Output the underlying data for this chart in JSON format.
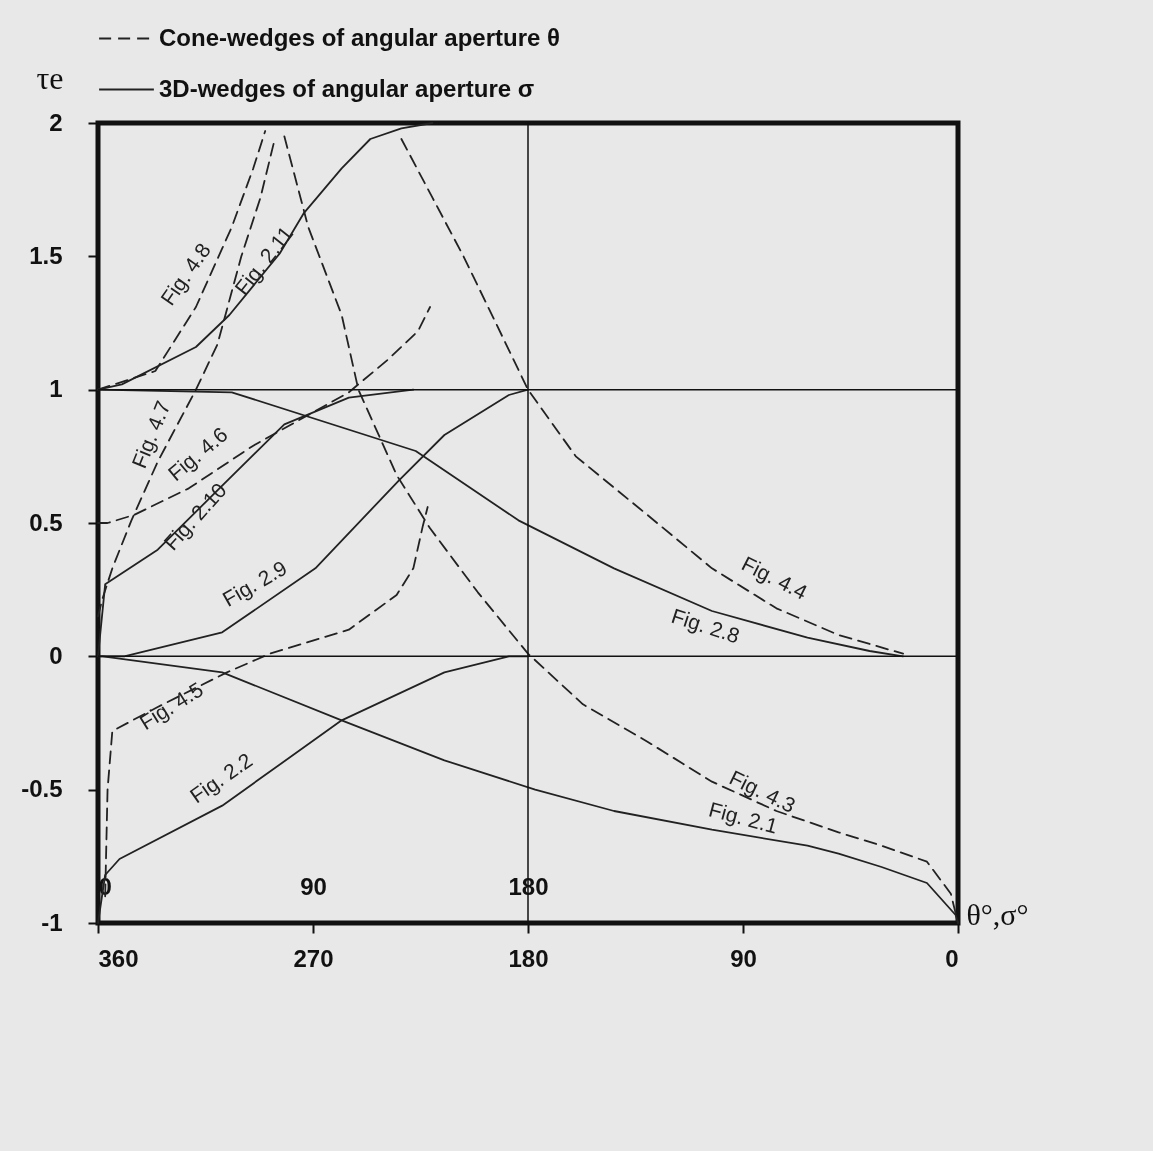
{
  "chart_data": {
    "type": "line",
    "xlabel": "θ°,σ°",
    "ylabel": "τe",
    "xlim": [
      360,
      0
    ],
    "xticks": [
      360,
      270,
      180,
      90,
      0
    ],
    "x2lim": [
      0,
      360
    ],
    "x2ticks": [
      0,
      90,
      180
    ],
    "ylim": [
      -1,
      2
    ],
    "yticks": [
      -1,
      -0.5,
      0,
      0.5,
      1,
      1.5,
      2
    ],
    "grid": false,
    "annotations": [
      "Cone-wedges of angular aperture θ",
      "3D-wedges of angular aperture σ"
    ],
    "ref_lines": [
      {
        "axis": "y",
        "value": 0
      },
      {
        "axis": "y",
        "value": 1
      },
      {
        "axis": "x",
        "value": 180
      }
    ],
    "series": [
      {
        "name": "Fig. 4.8",
        "color": "#222222",
        "line_style": "dashed",
        "x": [
          360,
          336,
          319,
          304,
          295,
          290
        ],
        "values": [
          1,
          1.07,
          1.31,
          1.61,
          1.83,
          1.97
        ]
      },
      {
        "name": "Fig. 2.11",
        "color": "#222222",
        "line_style": "solid",
        "x": [
          360,
          350,
          319,
          305,
          284,
          274,
          258,
          246,
          233,
          220
        ],
        "values": [
          1,
          1.02,
          1.16,
          1.28,
          1.51,
          1.66,
          1.83,
          1.94,
          1.98,
          2
        ]
      },
      {
        "name": "Fig. 4.7",
        "color": "#222222",
        "line_style": "dashed",
        "x": [
          360,
          358,
          354,
          346,
          335,
          319,
          310,
          300,
          292,
          286
        ],
        "values": [
          0.15,
          0.22,
          0.33,
          0.51,
          0.73,
          1.0,
          1.17,
          1.5,
          1.72,
          1.94
        ]
      },
      {
        "name": "Fig. 4.6",
        "color": "#222222",
        "line_style": "dashed",
        "x": [
          360,
          356,
          345,
          322,
          295,
          269,
          255,
          239,
          226,
          221
        ],
        "values": [
          0.5,
          0.5,
          0.53,
          0.63,
          0.79,
          0.92,
          0.99,
          1.11,
          1.22,
          1.31
        ]
      },
      {
        "name": "Fig. 2.10",
        "color": "#222222",
        "line_style": "solid",
        "x": [
          360,
          357,
          335,
          308,
          282,
          255,
          228
        ],
        "values": [
          0,
          0.27,
          0.4,
          0.64,
          0.87,
          0.97,
          1
        ]
      },
      {
        "name": "Fig. 2.9",
        "color": "#222222",
        "line_style": "solid",
        "x": [
          360,
          349,
          308,
          269,
          234,
          215,
          188,
          180
        ],
        "values": [
          0,
          0,
          0.09,
          0.33,
          0.66,
          0.83,
          0.98,
          1
        ]
      },
      {
        "name": "Fig. 4.5",
        "color": "#222222",
        "line_style": "dashed",
        "x": [
          357,
          356,
          354,
          335,
          306,
          288,
          255,
          235,
          228,
          224,
          222
        ],
        "values": [
          -0.9,
          -0.5,
          -0.28,
          -0.19,
          -0.06,
          0.01,
          0.1,
          0.23,
          0.33,
          0.49,
          0.56
        ]
      },
      {
        "name": "Fig. 2.2",
        "color": "#222222",
        "line_style": "solid",
        "x": [
          360,
          357,
          351,
          308,
          258,
          215,
          188,
          180
        ],
        "values": [
          -1,
          -0.82,
          -0.76,
          -0.56,
          -0.24,
          -0.06,
          0,
          0
        ]
      },
      {
        "name": "Fig. 4.4",
        "color": "#222222",
        "line_style": "dashed",
        "x": [
          233,
          220,
          207,
          194,
          180,
          160,
          130,
          103,
          76,
          50,
          23
        ],
        "values": [
          1.94,
          1.72,
          1.5,
          1.26,
          1.0,
          0.75,
          0.53,
          0.33,
          0.18,
          0.08,
          0.01
        ]
      },
      {
        "name": "Fig. 2.8",
        "color": "#222222",
        "line_style": "solid",
        "x": [
          360,
          304,
          227,
          184,
          144,
          103,
          63,
          37,
          23
        ],
        "values": [
          1,
          0.99,
          0.77,
          0.51,
          0.33,
          0.17,
          0.07,
          0.02,
          0
        ]
      },
      {
        "name": "Fig. 4.3",
        "color": "#222222",
        "line_style": "dashed",
        "x": [
          282,
          272,
          258,
          251,
          235,
          221,
          201,
          180,
          157,
          130,
          103,
          76,
          50,
          32,
          13,
          3,
          0
        ],
        "values": [
          1.95,
          1.61,
          1.28,
          1.0,
          0.68,
          0.48,
          0.24,
          0.01,
          -0.18,
          -0.32,
          -0.47,
          -0.58,
          -0.66,
          -0.71,
          -0.77,
          -0.89,
          -1
        ]
      },
      {
        "name": "Fig. 2.1",
        "color": "#222222",
        "line_style": "solid",
        "x": [
          360,
          358,
          308,
          258,
          215,
          177,
          144,
          103,
          63,
          50,
          32,
          13,
          1,
          0
        ],
        "values": [
          0,
          0,
          -0.06,
          -0.24,
          -0.39,
          -0.5,
          -0.58,
          -0.65,
          -0.71,
          -0.74,
          -0.79,
          -0.85,
          -0.97,
          -1
        ]
      }
    ]
  }
}
